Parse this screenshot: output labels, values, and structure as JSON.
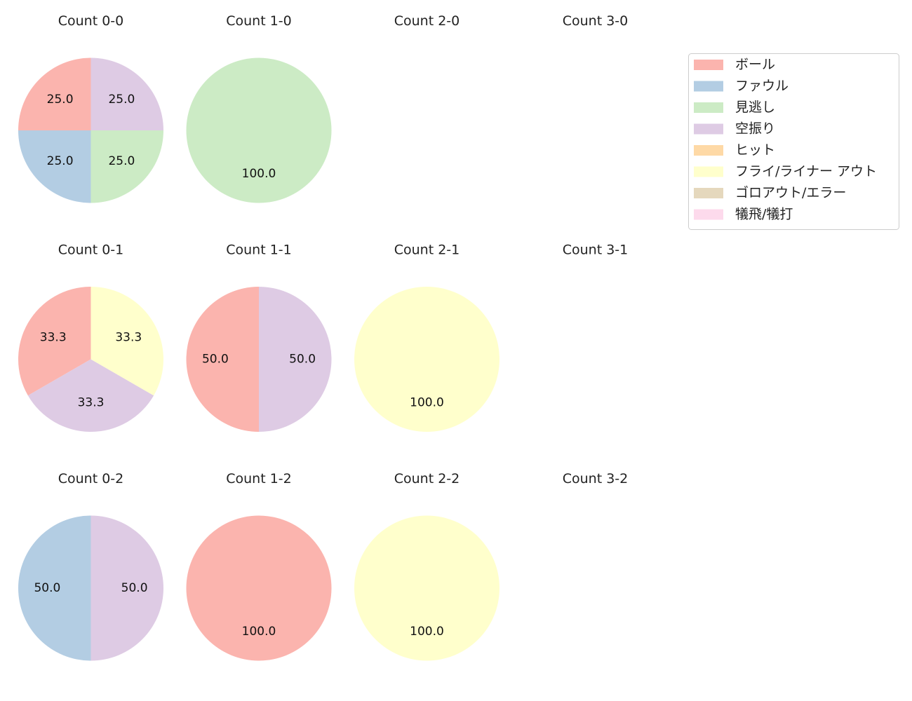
{
  "chart_data": {
    "type": "pie",
    "legend": {
      "placement": "upper-right",
      "entries": [
        {
          "label": "ボール",
          "color": "#fbb4ae"
        },
        {
          "label": "ファウル",
          "color": "#b3cde3"
        },
        {
          "label": "見逃し",
          "color": "#ccebc5"
        },
        {
          "label": "空振り",
          "color": "#decbe4"
        },
        {
          "label": "ヒット",
          "color": "#fed9a6"
        },
        {
          "label": "フライ/ライナー アウト",
          "color": "#ffffcc"
        },
        {
          "label": "ゴロアウト/エラー",
          "color": "#e5d8bd"
        },
        {
          "label": "犠飛/犠打",
          "color": "#fddaec"
        }
      ]
    },
    "subplots": [
      {
        "title": "Count 0-0",
        "row": 0,
        "col": 0,
        "slices": [
          {
            "category": "ボール",
            "value": 25.0,
            "label": "25.0"
          },
          {
            "category": "ファウル",
            "value": 25.0,
            "label": "25.0"
          },
          {
            "category": "見逃し",
            "value": 25.0,
            "label": "25.0"
          },
          {
            "category": "空振り",
            "value": 25.0,
            "label": "25.0"
          }
        ]
      },
      {
        "title": "Count 1-0",
        "row": 0,
        "col": 1,
        "slices": [
          {
            "category": "見逃し",
            "value": 100.0,
            "label": "100.0"
          }
        ]
      },
      {
        "title": "Count 2-0",
        "row": 0,
        "col": 2,
        "slices": []
      },
      {
        "title": "Count 3-0",
        "row": 0,
        "col": 3,
        "slices": []
      },
      {
        "title": "Count 0-1",
        "row": 1,
        "col": 0,
        "slices": [
          {
            "category": "ボール",
            "value": 33.3,
            "label": "33.3"
          },
          {
            "category": "空振り",
            "value": 33.3,
            "label": "33.3"
          },
          {
            "category": "フライ/ライナー アウト",
            "value": 33.3,
            "label": "33.3"
          }
        ]
      },
      {
        "title": "Count 1-1",
        "row": 1,
        "col": 1,
        "slices": [
          {
            "category": "ボール",
            "value": 50.0,
            "label": "50.0"
          },
          {
            "category": "空振り",
            "value": 50.0,
            "label": "50.0"
          }
        ]
      },
      {
        "title": "Count 2-1",
        "row": 1,
        "col": 2,
        "slices": [
          {
            "category": "フライ/ライナー アウト",
            "value": 100.0,
            "label": "100.0"
          }
        ]
      },
      {
        "title": "Count 3-1",
        "row": 1,
        "col": 3,
        "slices": []
      },
      {
        "title": "Count 0-2",
        "row": 2,
        "col": 0,
        "slices": [
          {
            "category": "ファウル",
            "value": 50.0,
            "label": "50.0"
          },
          {
            "category": "空振り",
            "value": 50.0,
            "label": "50.0"
          }
        ]
      },
      {
        "title": "Count 1-2",
        "row": 2,
        "col": 1,
        "slices": [
          {
            "category": "ボール",
            "value": 100.0,
            "label": "100.0"
          }
        ]
      },
      {
        "title": "Count 2-2",
        "row": 2,
        "col": 2,
        "slices": [
          {
            "category": "フライ/ライナー アウト",
            "value": 100.0,
            "label": "100.0"
          }
        ]
      },
      {
        "title": "Count 3-2",
        "row": 2,
        "col": 3,
        "slices": []
      }
    ]
  }
}
